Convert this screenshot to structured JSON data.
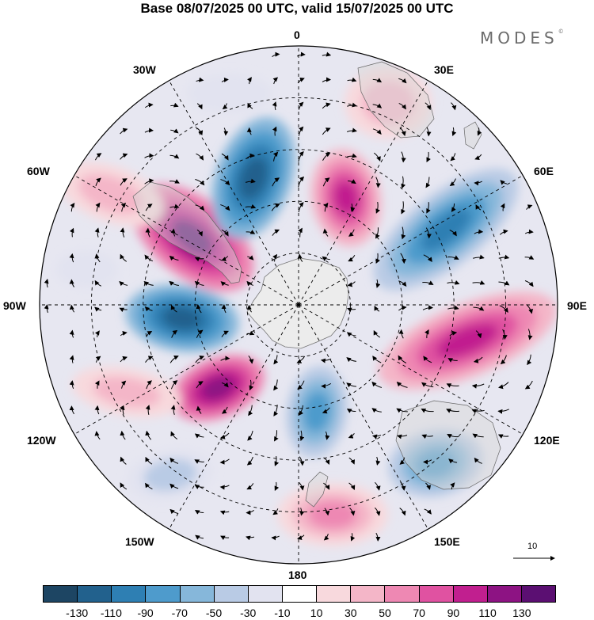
{
  "title": "Base 08/07/2025 00 UTC, valid 15/07/2025 00 UTC",
  "brand": {
    "name": "MODES",
    "mark": "©"
  },
  "longitude_labels": {
    "lon_0": "0",
    "lon_30e": "30E",
    "lon_60e": "60E",
    "lon_90e": "90E",
    "lon_120e": "120E",
    "lon_150e": "150E",
    "lon_180": "180",
    "lon_150w": "150W",
    "lon_120w": "120W",
    "lon_90w": "90W",
    "lon_60w": "60W",
    "lon_30w": "30W"
  },
  "reference_vector": {
    "label": "10"
  },
  "colorbar": {
    "colors": [
      "#1d4563",
      "#22618d",
      "#2e7fb3",
      "#4e9bcc",
      "#86b7da",
      "#b9cbe5",
      "#e2e3f0",
      "#ffffff",
      "#f8d9dd",
      "#f4b6c8",
      "#ee88b3",
      "#e052a1",
      "#c11f8f",
      "#8d1383",
      "#5b0f72"
    ],
    "ticks": [
      "-130",
      "-110",
      "-90",
      "-70",
      "-50",
      "-30",
      "-10",
      "10",
      "30",
      "50",
      "70",
      "90",
      "110",
      "130"
    ]
  }
}
